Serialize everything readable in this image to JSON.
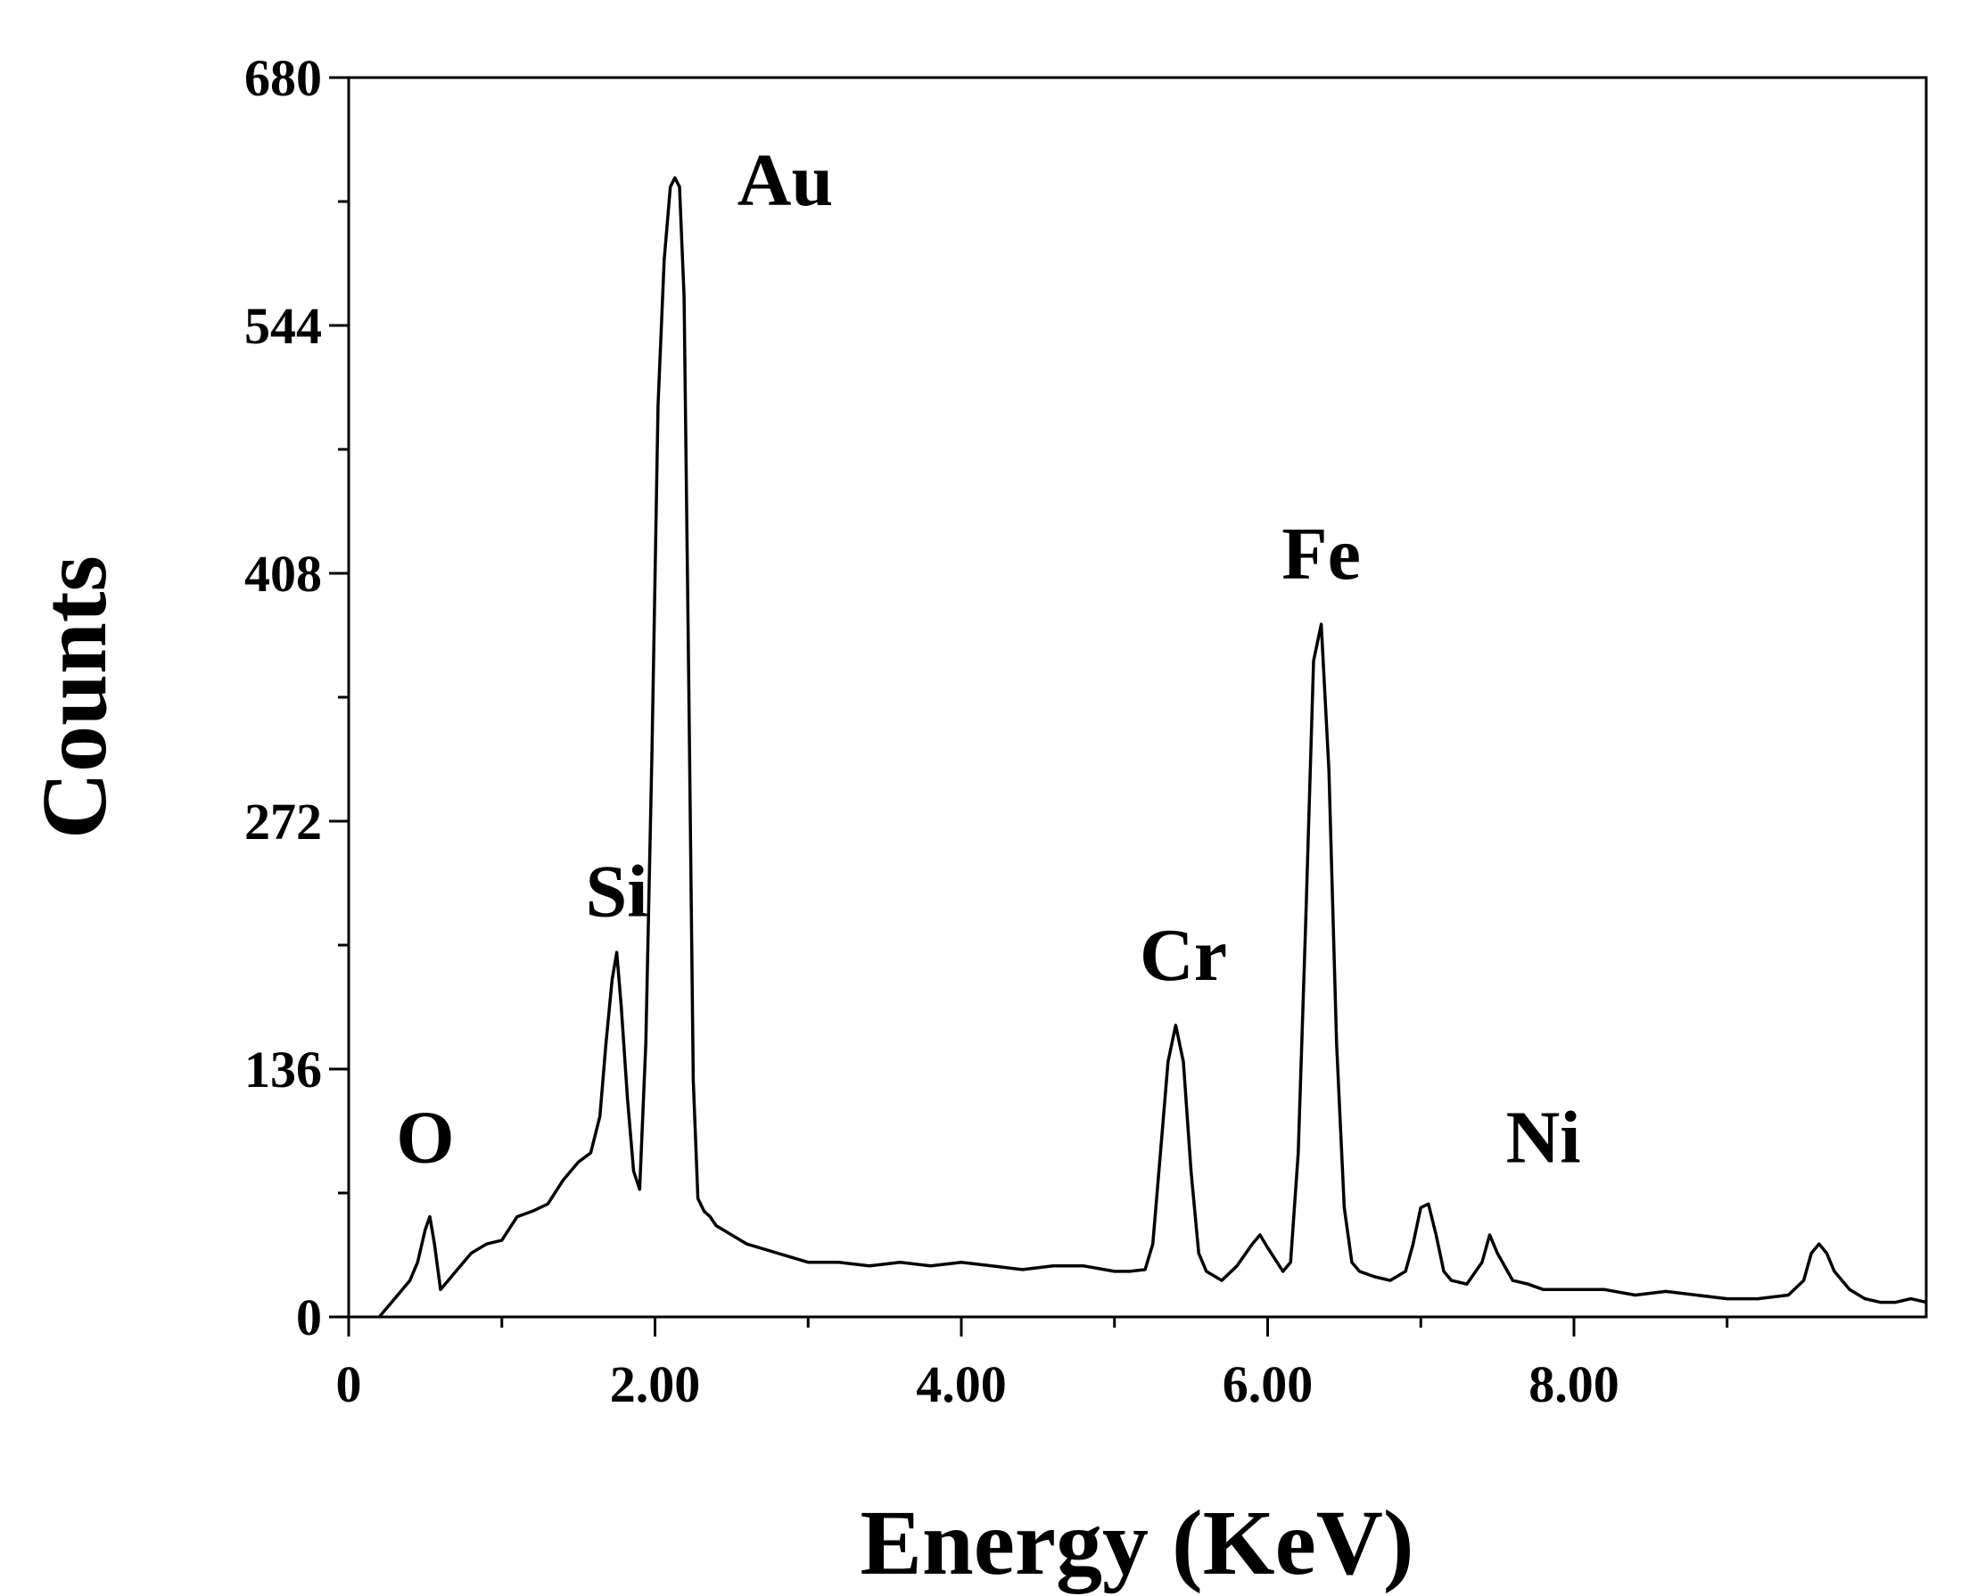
{
  "chart_data": {
    "type": "line",
    "title": "",
    "xlabel": "Energy (KeV)",
    "ylabel": "Counts",
    "xlim": [
      0,
      10.3
    ],
    "ylim": [
      0,
      680
    ],
    "xticks": [
      0,
      2,
      4,
      6,
      8
    ],
    "xtick_labels": [
      "0",
      "2.00",
      "4.00",
      "6.00",
      "8.00"
    ],
    "yticks": [
      0,
      136,
      272,
      408,
      544,
      680
    ],
    "ytick_labels": [
      "0",
      "136",
      "272",
      "408",
      "544",
      "680"
    ],
    "grid": false,
    "legend": "none",
    "line_color": "#000000",
    "series": [
      {
        "name": "",
        "x": [
          0.2,
          0.3,
          0.4,
          0.45,
          0.5,
          0.53,
          0.56,
          0.6,
          0.65,
          0.7,
          0.8,
          0.9,
          1.0,
          1.1,
          1.2,
          1.3,
          1.4,
          1.5,
          1.58,
          1.64,
          1.68,
          1.72,
          1.75,
          1.78,
          1.82,
          1.86,
          1.9,
          1.94,
          1.98,
          2.02,
          2.06,
          2.1,
          2.13,
          2.16,
          2.19,
          2.22,
          2.25,
          2.28,
          2.32,
          2.36,
          2.4,
          2.5,
          2.6,
          2.8,
          3.0,
          3.2,
          3.4,
          3.6,
          3.8,
          4.0,
          4.2,
          4.4,
          4.6,
          4.8,
          5.0,
          5.1,
          5.2,
          5.25,
          5.3,
          5.35,
          5.4,
          5.45,
          5.5,
          5.55,
          5.6,
          5.7,
          5.8,
          5.9,
          5.95,
          6.0,
          6.1,
          6.15,
          6.2,
          6.25,
          6.3,
          6.35,
          6.4,
          6.45,
          6.5,
          6.55,
          6.6,
          6.7,
          6.8,
          6.9,
          6.95,
          7.0,
          7.05,
          7.1,
          7.15,
          7.2,
          7.3,
          7.4,
          7.45,
          7.5,
          7.6,
          7.7,
          7.8,
          8.0,
          8.2,
          8.4,
          8.6,
          8.8,
          9.0,
          9.2,
          9.4,
          9.5,
          9.55,
          9.6,
          9.65,
          9.7,
          9.8,
          9.9,
          10.0,
          10.1,
          10.2,
          10.3
        ],
        "y": [
          0,
          10,
          20,
          30,
          48,
          55,
          40,
          15,
          20,
          25,
          35,
          40,
          42,
          55,
          58,
          62,
          75,
          85,
          90,
          110,
          150,
          185,
          200,
          170,
          120,
          80,
          70,
          150,
          310,
          500,
          580,
          620,
          625,
          620,
          560,
          350,
          130,
          65,
          58,
          55,
          50,
          45,
          40,
          35,
          30,
          30,
          28,
          30,
          28,
          30,
          28,
          26,
          28,
          28,
          25,
          25,
          26,
          40,
          90,
          140,
          160,
          140,
          80,
          35,
          25,
          20,
          28,
          40,
          45,
          38,
          25,
          30,
          90,
          220,
          360,
          380,
          300,
          150,
          60,
          30,
          25,
          22,
          20,
          25,
          40,
          60,
          62,
          45,
          25,
          20,
          18,
          30,
          45,
          35,
          20,
          18,
          15,
          15,
          15,
          12,
          14,
          12,
          10,
          10,
          12,
          20,
          35,
          40,
          35,
          25,
          15,
          10,
          8,
          8,
          10,
          8
        ]
      }
    ],
    "annotations": [
      {
        "text": "O",
        "x": 0.5,
        "y": 85
      },
      {
        "text": "Si",
        "x": 1.75,
        "y": 220
      },
      {
        "text": "Au",
        "x": 2.85,
        "y": 610
      },
      {
        "text": "Cr",
        "x": 5.45,
        "y": 185
      },
      {
        "text": "Fe",
        "x": 6.35,
        "y": 405
      },
      {
        "text": "Ni",
        "x": 7.8,
        "y": 85
      }
    ]
  }
}
